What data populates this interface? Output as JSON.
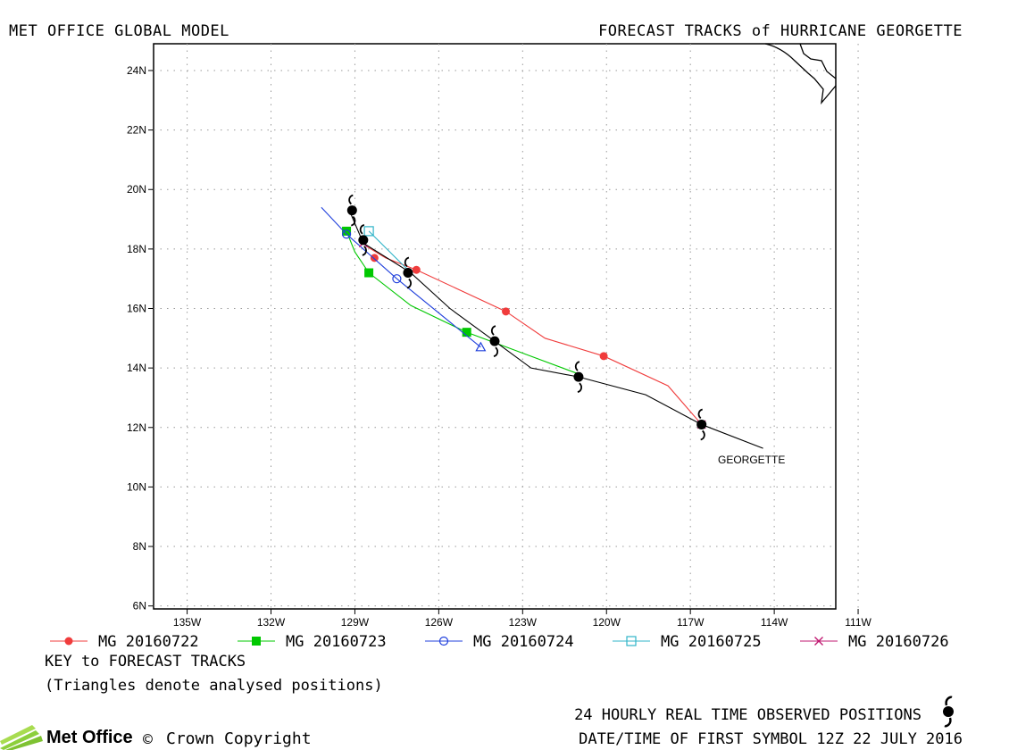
{
  "header": {
    "left_title": "MET OFFICE GLOBAL MODEL",
    "right_title": "FORECAST TRACKS of HURRICANE GEORGETTE"
  },
  "chart_data": {
    "type": "line",
    "title": "FORECAST TRACKS of HURRICANE GEORGETTE",
    "xlim": [
      -136.2,
      -111.8
    ],
    "ylim": [
      5.9,
      24.9
    ],
    "x_ticks": [
      -135,
      -132,
      -129,
      -126,
      -123,
      -120,
      -117,
      -114,
      -111
    ],
    "x_tick_labels": [
      "135W",
      "132W",
      "129W",
      "126W",
      "123W",
      "120W",
      "117W",
      "114W",
      "111W"
    ],
    "y_ticks": [
      6,
      8,
      10,
      12,
      14,
      16,
      18,
      20,
      22,
      24
    ],
    "y_tick_labels": [
      "6N",
      "8N",
      "10N",
      "12N",
      "14N",
      "16N",
      "18N",
      "20N",
      "22N",
      "24N"
    ],
    "grid": true,
    "observed_track": {
      "name": "GEORGETTE",
      "points": [
        [
          -114.4,
          11.3
        ],
        [
          -116.6,
          12.1
        ],
        [
          -118.6,
          13.1
        ],
        [
          -121.0,
          13.7
        ],
        [
          -122.7,
          14.0
        ],
        [
          -124.0,
          14.9
        ],
        [
          -125.6,
          16.0
        ],
        [
          -127.0,
          17.2
        ],
        [
          -128.7,
          18.2
        ],
        [
          -129.2,
          19.3
        ]
      ],
      "symbol_points": [
        [
          -116.6,
          12.1
        ],
        [
          -121.0,
          13.7
        ],
        [
          -124.0,
          14.9
        ],
        [
          -127.1,
          17.2
        ],
        [
          -128.7,
          18.3
        ],
        [
          -129.1,
          19.3
        ]
      ]
    },
    "series": [
      {
        "name": "MG 20160722",
        "color": "#f03c3c",
        "marker": "filled-circle",
        "line": [
          [
            -116.6,
            12.1
          ],
          [
            -117.8,
            13.4
          ],
          [
            -120.1,
            14.4
          ],
          [
            -122.2,
            15.0
          ],
          [
            -123.6,
            15.9
          ],
          [
            -126.8,
            17.3
          ],
          [
            -127.9,
            17.7
          ],
          [
            -128.6,
            18.1
          ]
        ],
        "markers": [
          [
            -120.1,
            14.4
          ],
          [
            -123.6,
            15.9
          ],
          [
            -126.8,
            17.3
          ],
          [
            -128.3,
            17.7
          ]
        ]
      },
      {
        "name": "MG 20160723",
        "color": "#00c800",
        "marker": "filled-square",
        "line": [
          [
            -121.0,
            13.8
          ],
          [
            -123.0,
            14.5
          ],
          [
            -125.0,
            15.2
          ],
          [
            -127.0,
            16.1
          ],
          [
            -128.5,
            17.2
          ],
          [
            -129.0,
            17.9
          ],
          [
            -129.3,
            18.6
          ]
        ],
        "markers": [
          [
            -125.0,
            15.2
          ],
          [
            -128.5,
            17.2
          ],
          [
            -129.3,
            18.6
          ]
        ]
      },
      {
        "name": "MG 20160724",
        "color": "#2040dc",
        "marker": "open-circle",
        "line": [
          [
            -124.5,
            14.7
          ],
          [
            -127.5,
            17.0
          ],
          [
            -129.3,
            18.5
          ],
          [
            -130.2,
            19.4
          ]
        ],
        "markers": [
          [
            -127.5,
            17.0
          ],
          [
            -129.3,
            18.5
          ]
        ],
        "analysed": [
          -124.5,
          14.7
        ]
      },
      {
        "name": "MG 20160725",
        "color": "#30b4c8",
        "marker": "open-square",
        "line": [
          [
            -127.0,
            17.2
          ],
          [
            -128.5,
            18.6
          ]
        ],
        "markers": [
          [
            -128.5,
            18.6
          ]
        ]
      },
      {
        "name": "MG 20160726",
        "color": "#c01870",
        "marker": "cross",
        "line": [
          [
            -128.8,
            18.1
          ],
          [
            -128.7,
            18.3
          ]
        ],
        "markers": [
          [
            -128.7,
            18.2
          ]
        ],
        "analysed_marks": [
          [
            -116.6,
            12.1
          ]
        ]
      }
    ]
  },
  "storm_label": "GEORGETTE",
  "legend": {
    "items": [
      {
        "label": "MG 20160722",
        "color": "#f03c3c",
        "marker": "filled-circle"
      },
      {
        "label": "MG 20160723",
        "color": "#00c800",
        "marker": "filled-square"
      },
      {
        "label": "MG 20160724",
        "color": "#2040dc",
        "marker": "open-circle"
      },
      {
        "label": "MG 20160725",
        "color": "#30b4c8",
        "marker": "open-square"
      },
      {
        "label": "MG 20160726",
        "color": "#c01870",
        "marker": "cross"
      }
    ],
    "key_title": "KEY to FORECAST TRACKS",
    "key_note": "(Triangles denote analysed positions)"
  },
  "footer": {
    "observed_note": "24 HOURLY REAL TIME OBSERVED POSITIONS",
    "first_symbol": "DATE/TIME OF FIRST SYMBOL 12Z 22 JULY 2016",
    "brand": "Met Office",
    "copyright": "Crown Copyright",
    "copyright_symbol": "©"
  }
}
